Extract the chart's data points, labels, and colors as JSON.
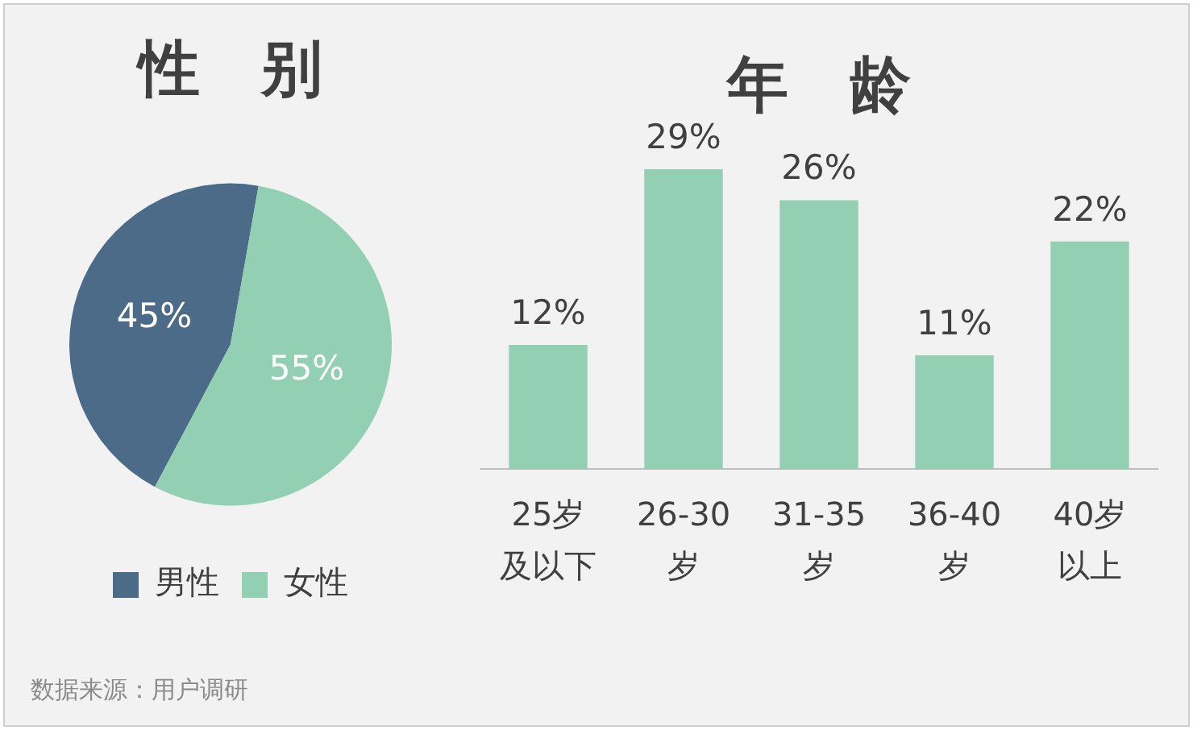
{
  "chart_data": [
    {
      "type": "pie",
      "title": "性　别",
      "categories": [
        "男性",
        "女性"
      ],
      "values": [
        45,
        55
      ],
      "colors": [
        "#4b6b88",
        "#93cfb3"
      ],
      "value_labels": [
        "45%",
        "55%"
      ],
      "legend": "bottom",
      "annotations": [
        "数据来源：用户调研"
      ]
    },
    {
      "type": "bar",
      "title": "年　龄",
      "categories": [
        "25岁及以下",
        "26-30岁",
        "31-35岁",
        "36-40岁",
        "40岁以上"
      ],
      "values": [
        12,
        29,
        26,
        11,
        22
      ],
      "color": "#93cfb3",
      "value_labels": [
        "12%",
        "29%",
        "26%",
        "11%",
        "22%"
      ],
      "grid": false,
      "legend": false
    }
  ]
}
